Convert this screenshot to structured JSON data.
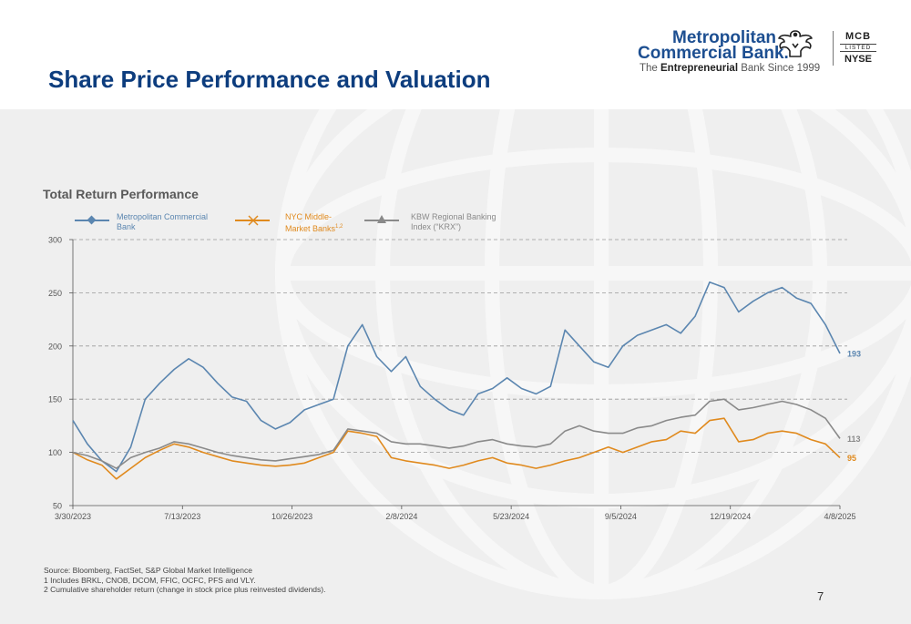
{
  "slide": {
    "title": "Share Price Performance and Valuation",
    "page_number": "7"
  },
  "logo": {
    "name_line1": "Metropolitan",
    "name_line2": "Commercial Bank.",
    "tagline_prefix": "The ",
    "tagline_bold": "Entrepreneurial",
    "tagline_suffix": " Bank Since 1999",
    "ticker": "MCB",
    "listed": "LISTED",
    "exchange": "NYSE",
    "brand_color": "#1d4f91"
  },
  "colors": {
    "title": "#0d3d7e",
    "mcb": "#5b86b0",
    "nyc": "#e08a1e",
    "kbw": "#8a8a8a"
  },
  "legend": {
    "mcb": [
      "Metropolitan Commercial",
      "Bank"
    ],
    "nyc": [
      "NYC Middle-",
      "Market Banks"
    ],
    "nyc_sup": "1,2",
    "kbw": [
      "KBW Regional Banking",
      "Index (“KRX”)"
    ]
  },
  "footnotes": [
    "Source: Bloomberg, FactSet, S&P Global Market Intelligence",
    "1 Includes BRKL, CNOB, DCOM, FFIC, OCFC, PFS and VLY.",
    "2 Cumulative shareholder return (change in stock price plus reinvested dividends)."
  ],
  "chart_data": {
    "type": "line",
    "title": "Total Return Performance",
    "xlabel": "",
    "ylabel": "",
    "ylim": [
      50,
      300
    ],
    "yticks": [
      50,
      100,
      150,
      200,
      250,
      300
    ],
    "xticks": [
      "3/30/2023",
      "7/13/2023",
      "10/26/2023",
      "2/8/2024",
      "5/23/2024",
      "9/5/2024",
      "12/19/2024",
      "4/8/2025"
    ],
    "x": [
      "3/30/2023",
      "4/13/2023",
      "4/27/2023",
      "5/11/2023",
      "5/25/2023",
      "6/8/2023",
      "6/22/2023",
      "7/6/2023",
      "7/20/2023",
      "8/3/2023",
      "8/17/2023",
      "8/31/2023",
      "9/14/2023",
      "9/28/2023",
      "10/12/2023",
      "10/26/2023",
      "11/9/2023",
      "11/23/2023",
      "12/7/2023",
      "12/21/2023",
      "1/4/2024",
      "1/18/2024",
      "2/1/2024",
      "2/15/2024",
      "2/29/2024",
      "3/14/2024",
      "3/28/2024",
      "4/11/2024",
      "4/25/2024",
      "5/9/2024",
      "5/23/2024",
      "6/6/2024",
      "6/20/2024",
      "7/4/2024",
      "7/18/2024",
      "8/1/2024",
      "8/15/2024",
      "8/29/2024",
      "9/12/2024",
      "9/26/2024",
      "10/10/2024",
      "10/24/2024",
      "11/7/2024",
      "11/21/2024",
      "12/5/2024",
      "12/19/2024",
      "1/2/2025",
      "1/16/2025",
      "1/30/2025",
      "2/13/2025",
      "2/27/2025",
      "3/13/2025",
      "3/27/2025",
      "4/8/2025"
    ],
    "series": [
      {
        "name": "Metropolitan Commercial Bank",
        "color": "#5b86b0",
        "end_label": "193",
        "values": [
          130,
          108,
          92,
          82,
          105,
          150,
          165,
          178,
          188,
          180,
          165,
          152,
          148,
          130,
          122,
          128,
          140,
          145,
          150,
          200,
          220,
          190,
          176,
          190,
          162,
          150,
          140,
          135,
          155,
          160,
          170,
          160,
          155,
          162,
          215,
          200,
          185,
          180,
          200,
          210,
          215,
          220,
          212,
          228,
          260,
          255,
          232,
          242,
          250,
          255,
          245,
          240,
          220,
          193
        ]
      },
      {
        "name": "NYC Middle-Market Banks",
        "color": "#e08a1e",
        "end_label": "95",
        "values": [
          100,
          93,
          88,
          75,
          85,
          95,
          102,
          108,
          105,
          100,
          96,
          92,
          90,
          88,
          87,
          88,
          90,
          95,
          100,
          120,
          118,
          115,
          95,
          92,
          90,
          88,
          85,
          88,
          92,
          95,
          90,
          88,
          85,
          88,
          92,
          95,
          100,
          105,
          100,
          105,
          110,
          112,
          120,
          118,
          130,
          132,
          110,
          112,
          118,
          120,
          118,
          112,
          108,
          95
        ]
      },
      {
        "name": "KBW Regional Banking Index (“KRX”)",
        "color": "#8a8a8a",
        "end_label": "113",
        "values": [
          100,
          97,
          92,
          85,
          95,
          100,
          104,
          110,
          108,
          104,
          100,
          97,
          95,
          93,
          92,
          94,
          96,
          98,
          102,
          122,
          120,
          118,
          110,
          108,
          108,
          106,
          104,
          106,
          110,
          112,
          108,
          106,
          105,
          108,
          120,
          125,
          120,
          118,
          118,
          123,
          125,
          130,
          133,
          135,
          148,
          150,
          140,
          142,
          145,
          148,
          145,
          140,
          132,
          113
        ]
      }
    ]
  }
}
